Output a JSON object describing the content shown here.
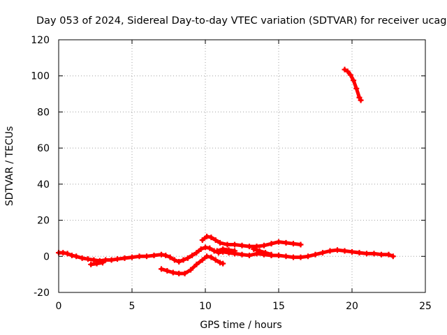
{
  "chart_data": {
    "type": "scatter",
    "title": "Day 053 of 2024, Sidereal Day-to-day VTEC variation (SDTVAR) for receiver ucag",
    "xlabel": "GPS time / hours",
    "ylabel": "SDTVAR / TECUs",
    "xlim": [
      0,
      25
    ],
    "ylim": [
      -20,
      120
    ],
    "xticks": [
      0,
      5,
      10,
      15,
      20,
      25
    ],
    "yticks": [
      -20,
      0,
      20,
      40,
      60,
      80,
      100,
      120
    ],
    "xtick_labels": [
      "0",
      "5",
      "10",
      "15",
      "20",
      "25"
    ],
    "ytick_labels": [
      "-20",
      "0",
      "20",
      "40",
      "60",
      "80",
      "100",
      "120"
    ],
    "grid": true,
    "marker_color": "#ff0000",
    "series": [
      {
        "name": "main-trace",
        "points": [
          [
            0.0,
            2
          ],
          [
            0.3,
            2
          ],
          [
            0.6,
            1.5
          ],
          [
            0.9,
            0.5
          ],
          [
            1.2,
            0
          ],
          [
            1.6,
            -1
          ],
          [
            2.0,
            -1.5
          ],
          [
            2.4,
            -2
          ],
          [
            2.8,
            -2.5
          ],
          [
            3.2,
            -2
          ],
          [
            3.6,
            -2
          ],
          [
            4.0,
            -1.5
          ],
          [
            4.5,
            -1
          ],
          [
            5.0,
            -0.5
          ],
          [
            5.5,
            0
          ],
          [
            6.0,
            0
          ],
          [
            6.5,
            0.5
          ],
          [
            7.0,
            1
          ],
          [
            7.3,
            0.5
          ],
          [
            7.6,
            -0.5
          ],
          [
            7.9,
            -2
          ],
          [
            8.2,
            -3
          ],
          [
            8.5,
            -2
          ],
          [
            8.8,
            -1
          ],
          [
            9.1,
            0.5
          ],
          [
            9.4,
            2
          ],
          [
            9.7,
            4
          ],
          [
            10.0,
            5
          ],
          [
            10.3,
            4.5
          ],
          [
            10.6,
            3
          ],
          [
            10.9,
            2
          ],
          [
            11.2,
            2.5
          ],
          [
            11.6,
            2
          ],
          [
            12.0,
            1.5
          ],
          [
            12.5,
            1
          ],
          [
            13.0,
            0.5
          ],
          [
            13.5,
            1.5
          ],
          [
            14.0,
            1
          ],
          [
            14.5,
            0.5
          ],
          [
            15.0,
            0.5
          ],
          [
            15.5,
            0
          ],
          [
            16.0,
            -0.5
          ],
          [
            16.5,
            -0.5
          ],
          [
            17.0,
            0
          ],
          [
            17.5,
            1
          ],
          [
            18.0,
            2
          ],
          [
            18.5,
            3
          ],
          [
            19.0,
            3.5
          ],
          [
            19.5,
            3
          ],
          [
            20.0,
            2.5
          ],
          [
            20.5,
            2
          ],
          [
            21.0,
            1.5
          ],
          [
            21.5,
            1.5
          ],
          [
            22.0,
            1
          ],
          [
            22.5,
            1
          ],
          [
            22.8,
            0
          ]
        ]
      },
      {
        "name": "upper-trace",
        "points": [
          [
            9.8,
            9
          ],
          [
            10.1,
            11
          ],
          [
            10.4,
            10.5
          ],
          [
            10.7,
            9
          ],
          [
            11.0,
            7.5
          ],
          [
            11.5,
            6.5
          ],
          [
            12.0,
            6.5
          ],
          [
            12.5,
            6
          ],
          [
            13.0,
            5.5
          ],
          [
            13.5,
            5.5
          ],
          [
            14.0,
            6
          ],
          [
            14.5,
            7
          ],
          [
            15.0,
            8
          ],
          [
            15.5,
            7.5
          ],
          [
            16.0,
            7
          ],
          [
            16.5,
            6.5
          ]
        ]
      },
      {
        "name": "lower-trace",
        "points": [
          [
            7.0,
            -7
          ],
          [
            7.4,
            -8
          ],
          [
            7.8,
            -9
          ],
          [
            8.2,
            -9.5
          ],
          [
            8.6,
            -9.5
          ],
          [
            9.0,
            -7.5
          ],
          [
            9.4,
            -4.5
          ],
          [
            9.8,
            -2
          ],
          [
            10.1,
            0
          ],
          [
            10.4,
            -0.5
          ],
          [
            10.7,
            -2
          ],
          [
            11.0,
            -3.5
          ],
          [
            11.2,
            -4
          ]
        ]
      },
      {
        "name": "short-trace-2h",
        "points": [
          [
            2.2,
            -4.5
          ],
          [
            2.6,
            -4
          ],
          [
            3.0,
            -3.5
          ]
        ]
      },
      {
        "name": "short-trace-11h",
        "points": [
          [
            10.8,
            3
          ],
          [
            11.2,
            4
          ],
          [
            11.6,
            3.5
          ],
          [
            12.0,
            3
          ]
        ]
      },
      {
        "name": "short-trace-14h",
        "points": [
          [
            13.3,
            4
          ],
          [
            13.7,
            3
          ],
          [
            14.1,
            2
          ],
          [
            14.5,
            1
          ]
        ]
      },
      {
        "name": "high-trace",
        "points": [
          [
            19.5,
            103.5
          ],
          [
            19.7,
            102.5
          ],
          [
            19.9,
            100.5
          ],
          [
            20.1,
            97.5
          ],
          [
            20.3,
            93
          ],
          [
            20.5,
            88
          ],
          [
            20.6,
            86.5
          ]
        ]
      }
    ]
  }
}
